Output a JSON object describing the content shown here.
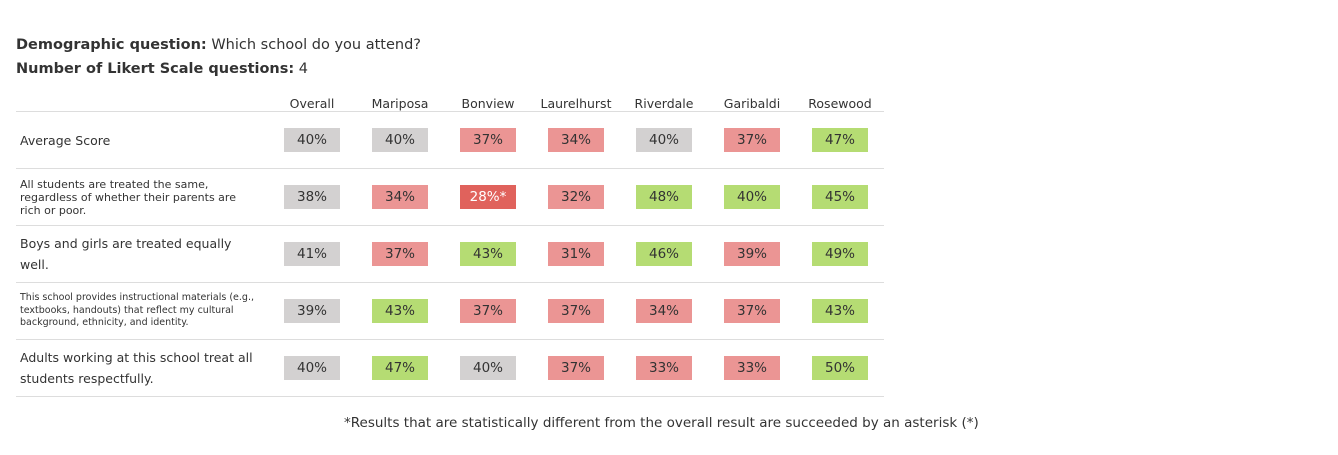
{
  "header": {
    "demographic_label": "Demographic question:",
    "demographic_value": "Which school do you attend?",
    "likert_label": "Number of Likert Scale questions:",
    "likert_value": "4"
  },
  "table": {
    "columns": [
      "Overall",
      "Mariposa",
      "Bonview",
      "Laurelhurst",
      "Riverdale",
      "Garibaldi",
      "Rosewood"
    ],
    "rows": [
      {
        "question": "Average Score",
        "cells": [
          {
            "value": "40%",
            "color": "grey"
          },
          {
            "value": "40%",
            "color": "grey"
          },
          {
            "value": "37%",
            "color": "red"
          },
          {
            "value": "34%",
            "color": "red"
          },
          {
            "value": "40%",
            "color": "grey"
          },
          {
            "value": "37%",
            "color": "red"
          },
          {
            "value": "47%",
            "color": "green"
          }
        ]
      },
      {
        "question": "All students are treated the same, regardless of whether their parents are rich or poor.",
        "cells": [
          {
            "value": "38%",
            "color": "grey"
          },
          {
            "value": "34%",
            "color": "red"
          },
          {
            "value": "28%*",
            "color": "darkred"
          },
          {
            "value": "32%",
            "color": "red"
          },
          {
            "value": "48%",
            "color": "green"
          },
          {
            "value": "40%",
            "color": "green"
          },
          {
            "value": "45%",
            "color": "green"
          }
        ]
      },
      {
        "question": "Boys and girls are treated equally well.",
        "cells": [
          {
            "value": "41%",
            "color": "grey"
          },
          {
            "value": "37%",
            "color": "red"
          },
          {
            "value": "43%",
            "color": "green"
          },
          {
            "value": "31%",
            "color": "red"
          },
          {
            "value": "46%",
            "color": "green"
          },
          {
            "value": "39%",
            "color": "red"
          },
          {
            "value": "49%",
            "color": "green"
          }
        ]
      },
      {
        "question": "This school provides instructional materials (e.g., textbooks, handouts) that reflect my cultural background, ethnicity, and identity.",
        "cells": [
          {
            "value": "39%",
            "color": "grey"
          },
          {
            "value": "43%",
            "color": "green"
          },
          {
            "value": "37%",
            "color": "red"
          },
          {
            "value": "37%",
            "color": "red"
          },
          {
            "value": "34%",
            "color": "red"
          },
          {
            "value": "37%",
            "color": "red"
          },
          {
            "value": "43%",
            "color": "green"
          }
        ]
      },
      {
        "question": "Adults working at this school treat all students respectfully.",
        "cells": [
          {
            "value": "40%",
            "color": "grey"
          },
          {
            "value": "47%",
            "color": "green"
          },
          {
            "value": "40%",
            "color": "grey"
          },
          {
            "value": "37%",
            "color": "red"
          },
          {
            "value": "33%",
            "color": "red"
          },
          {
            "value": "33%",
            "color": "red"
          },
          {
            "value": "50%",
            "color": "green"
          }
        ]
      }
    ]
  },
  "footnote": "*Results that are statistically different from the overall result are succeeded by an asterisk (*)",
  "colors": {
    "grey": "#d3d1d1",
    "red": "#eb9594",
    "darkred": "#e0625c",
    "green": "#b5dc73"
  }
}
